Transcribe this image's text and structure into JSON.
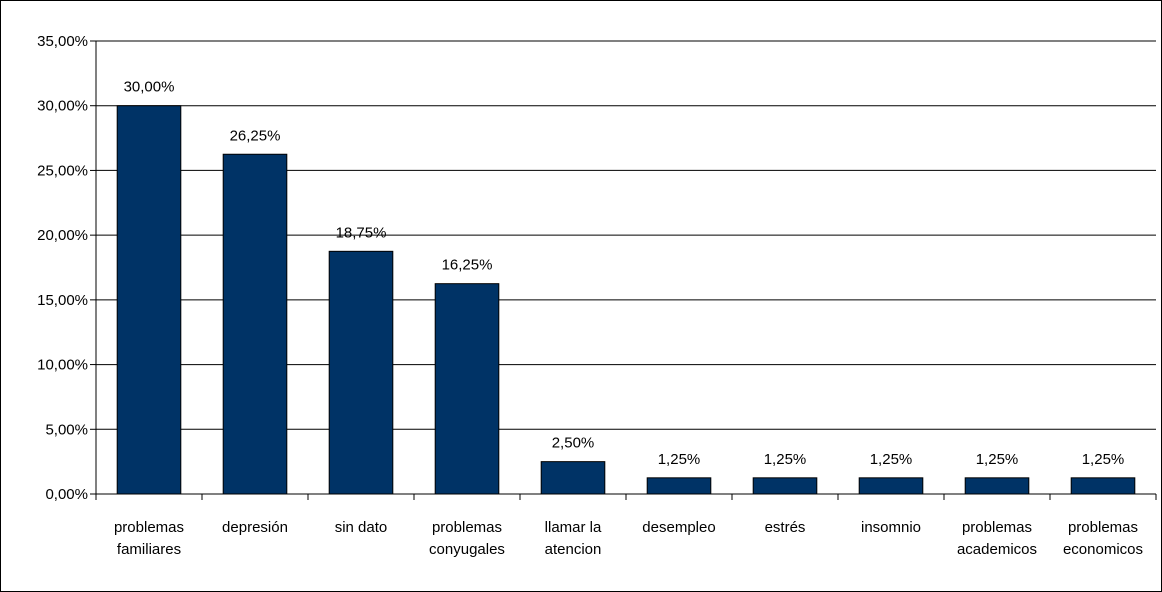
{
  "chart_data": {
    "type": "bar",
    "categories": [
      [
        "problemas",
        "familiares"
      ],
      [
        "depresión"
      ],
      [
        "sin dato"
      ],
      [
        "problemas",
        "conyugales"
      ],
      [
        "llamar la",
        "atencion"
      ],
      [
        "desempleo"
      ],
      [
        "estrés"
      ],
      [
        "insomnio"
      ],
      [
        "problemas",
        "academicos"
      ],
      [
        "problemas",
        "economicos"
      ]
    ],
    "values": [
      30.0,
      26.25,
      18.75,
      16.25,
      2.5,
      1.25,
      1.25,
      1.25,
      1.25,
      1.25
    ],
    "data_labels": [
      "30,00%",
      "26,25%",
      "18,75%",
      "16,25%",
      "2,50%",
      "1,25%",
      "1,25%",
      "1,25%",
      "1,25%",
      "1,25%"
    ],
    "y_ticks": [
      0,
      5,
      10,
      15,
      20,
      25,
      30,
      35
    ],
    "y_tick_labels": [
      "0,00%",
      "5,00%",
      "10,00%",
      "15,00%",
      "20,00%",
      "25,00%",
      "30,00%",
      "35,00%"
    ],
    "ylim": [
      0,
      35
    ],
    "grid": true,
    "legend": "none",
    "title": "",
    "xlabel": "",
    "ylabel": "",
    "colors": {
      "bar": "#003366",
      "bar_outline": "#000000",
      "grid": "#000000"
    }
  }
}
